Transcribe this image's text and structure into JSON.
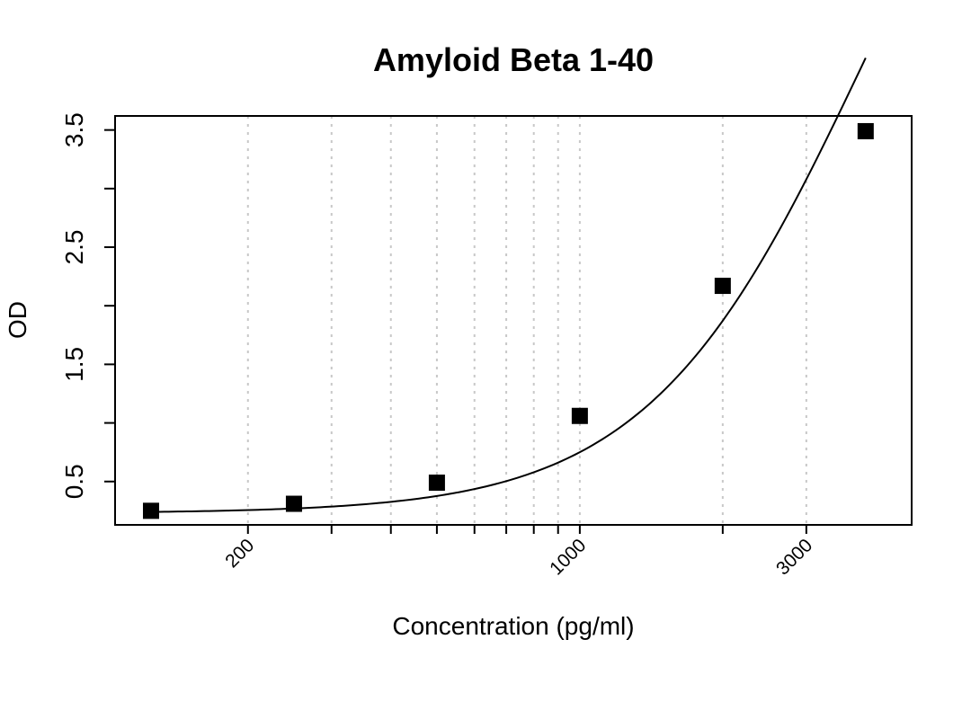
{
  "chart_data": {
    "type": "scatter",
    "title": "Amyloid Beta 1-40",
    "xlabel": "Concentration (pg/ml)",
    "ylabel": "OD",
    "x_scale": "log",
    "xlim": [
      105,
      5000
    ],
    "ylim": [
      0.13,
      3.62
    ],
    "x_ticks": [
      200,
      1000,
      3000
    ],
    "x_tick_labels": [
      "200",
      "1000",
      "3000"
    ],
    "x_minor_ticks": [
      300,
      400,
      500,
      600,
      700,
      800,
      900,
      2000
    ],
    "y_ticks": [
      0.5,
      1.0,
      1.5,
      2.0,
      2.5,
      3.0,
      3.5
    ],
    "y_tick_labels": [
      "0.5",
      "",
      "1.5",
      "",
      "2.5",
      "",
      "3.5"
    ],
    "grid": "vertical dotted at x tick positions",
    "series": [
      {
        "marker": "square",
        "color": "#000000",
        "x": [
          125,
          250,
          500,
          1000,
          2000,
          4000
        ],
        "y": [
          0.25,
          0.31,
          0.49,
          1.06,
          2.17,
          3.49
        ]
      }
    ],
    "fit_curve": {
      "type": "4-parameter logistic",
      "color": "#000000"
    }
  }
}
